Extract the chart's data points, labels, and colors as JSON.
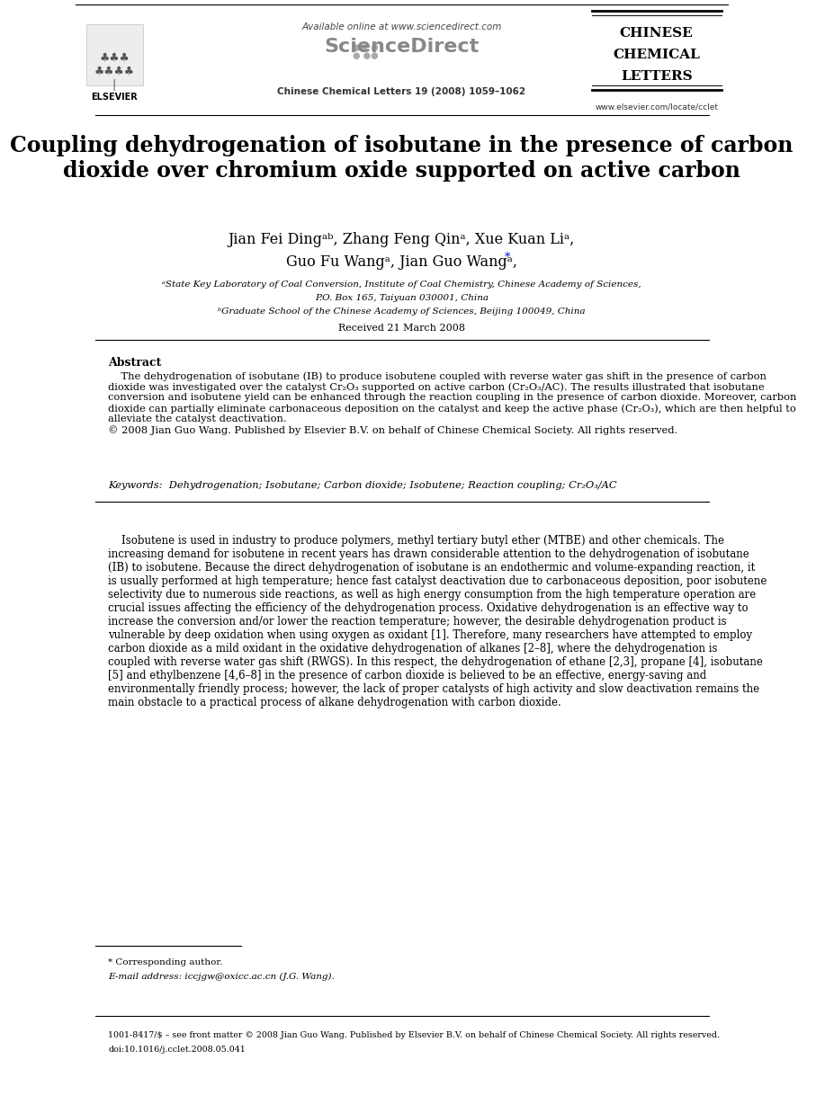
{
  "bg_color": "#ffffff",
  "title_text": "Coupling dehydrogenation of isobutane in the presence of carbon\ndioxide over chromium oxide supported on active carbon",
  "affil_a": "ᵃState Key Laboratory of Coal Conversion, Institute of Coal Chemistry, Chinese Academy of Sciences,",
  "affil_a2": "P.O. Box 165, Taiyuan 030001, China",
  "affil_b": "ᵇGraduate School of the Chinese Academy of Sciences, Beijing 100049, China",
  "received": "Received 21 March 2008",
  "header_available": "Available online at www.sciencedirect.com",
  "journal_ref": "Chinese Chemical Letters 19 (2008) 1059–1062",
  "journal_name_line1": "CHINESE",
  "journal_name_line2": "CHEMICAL",
  "journal_name_line3": "LETTERS",
  "journal_url": "www.elsevier.com/locate/cclet",
  "abstract_title": "Abstract",
  "keywords_text": "Keywords:  Dehydrogenation; Isobutane; Carbon dioxide; Isobutene; Reaction coupling; Cr₂O₃/AC",
  "footer_note": "* Corresponding author.",
  "footer_email": "E-mail address: iccjgw@oxicc.ac.cn (J.G. Wang).",
  "footer_issn": "1001-8417/$ – see front matter © 2008 Jian Guo Wang. Published by Elsevier B.V. on behalf of Chinese Chemical Society. All rights reserved.",
  "footer_doi": "doi:10.1016/j.cclet.2008.05.041"
}
